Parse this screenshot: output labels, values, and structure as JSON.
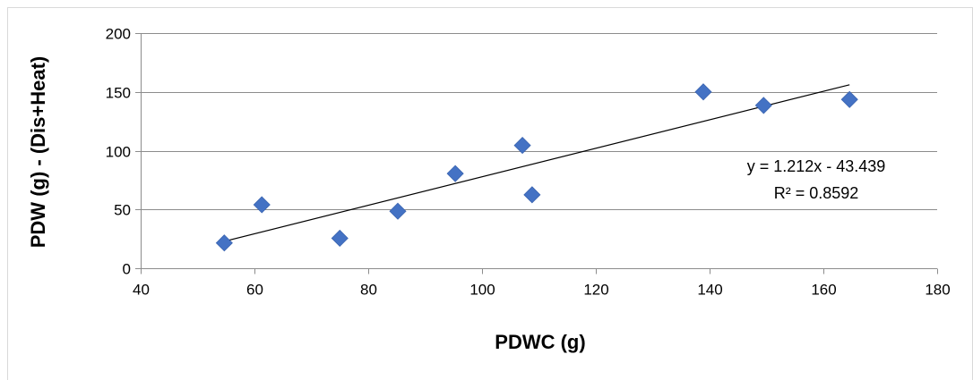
{
  "chart_data": {
    "type": "scatter",
    "title": "",
    "xlabel": "PDWC (g)",
    "ylabel": "PDW (g)  - (Dis+Heat)",
    "xlim": [
      40,
      180
    ],
    "ylim": [
      0,
      200
    ],
    "xticks": [
      "40",
      "60",
      "80",
      "100",
      "120",
      "140",
      "160",
      "180"
    ],
    "yticks": [
      "0",
      "50",
      "100",
      "150",
      "200"
    ],
    "grid": "horizontal",
    "legend": "none",
    "series": [
      {
        "color": "#4472C4",
        "marker": "diamond",
        "points": [
          {
            "x": 54.7,
            "y": 21.5
          },
          {
            "x": 61.3,
            "y": 54.0
          },
          {
            "x": 75.0,
            "y": 25.5
          },
          {
            "x": 85.2,
            "y": 48.5
          },
          {
            "x": 95.3,
            "y": 80.5
          },
          {
            "x": 107.1,
            "y": 104.5
          },
          {
            "x": 108.8,
            "y": 62.5
          },
          {
            "x": 138.9,
            "y": 150.0
          },
          {
            "x": 149.5,
            "y": 138.5
          },
          {
            "x": 164.6,
            "y": 143.5
          }
        ]
      }
    ],
    "trendline": {
      "type": "linear",
      "slope": 1.212,
      "intercept": -43.439,
      "x_range": [
        54.7,
        164.6
      ],
      "color": "#000000",
      "equation": "y = 1.212x - 43.439",
      "r_squared": "R² = 0.8592"
    }
  }
}
